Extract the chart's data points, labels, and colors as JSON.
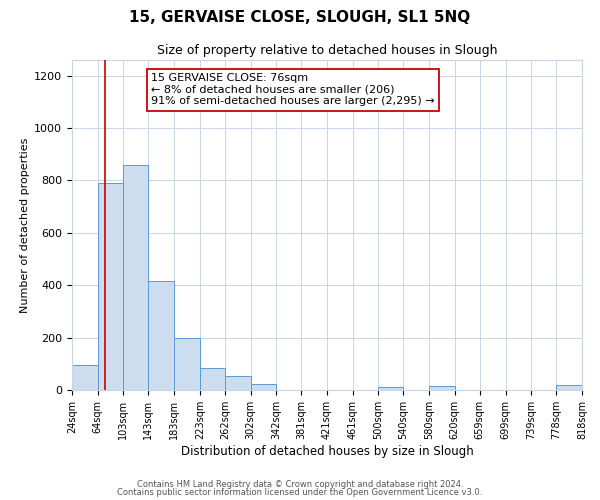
{
  "title": "15, GERVAISE CLOSE, SLOUGH, SL1 5NQ",
  "subtitle": "Size of property relative to detached houses in Slough",
  "xlabel": "Distribution of detached houses by size in Slough",
  "ylabel": "Number of detached properties",
  "bar_edges": [
    24,
    64,
    103,
    143,
    183,
    223,
    262,
    302,
    342,
    381,
    421,
    461,
    500,
    540,
    580,
    620,
    659,
    699,
    739,
    778,
    818
  ],
  "bar_heights": [
    95,
    790,
    860,
    415,
    200,
    85,
    52,
    22,
    0,
    0,
    0,
    0,
    10,
    0,
    15,
    0,
    0,
    0,
    0,
    18
  ],
  "tick_labels": [
    "24sqm",
    "64sqm",
    "103sqm",
    "143sqm",
    "183sqm",
    "223sqm",
    "262sqm",
    "302sqm",
    "342sqm",
    "381sqm",
    "421sqm",
    "461sqm",
    "500sqm",
    "540sqm",
    "580sqm",
    "620sqm",
    "659sqm",
    "699sqm",
    "739sqm",
    "778sqm",
    "818sqm"
  ],
  "bar_color": "#ccddf0",
  "bar_edge_color": "#5b9bd5",
  "property_line_x": 76,
  "property_line_color": "#cc0000",
  "annotation_line1": "15 GERVAISE CLOSE: 76sqm",
  "annotation_line2": "← 8% of detached houses are smaller (206)",
  "annotation_line3": "91% of semi-detached houses are larger (2,295) →",
  "annotation_box_color": "#ffffff",
  "annotation_box_edge_color": "#cc0000",
  "ylim": [
    0,
    1260
  ],
  "yticks": [
    0,
    200,
    400,
    600,
    800,
    1000,
    1200
  ],
  "footer1": "Contains HM Land Registry data © Crown copyright and database right 2024.",
  "footer2": "Contains public sector information licensed under the Open Government Licence v3.0.",
  "background_color": "#ffffff",
  "grid_color": "#c8d4e8",
  "title_fontsize": 11,
  "subtitle_fontsize": 9,
  "ylabel_fontsize": 8,
  "xlabel_fontsize": 8.5,
  "tick_fontsize": 7,
  "annotation_fontsize": 8
}
